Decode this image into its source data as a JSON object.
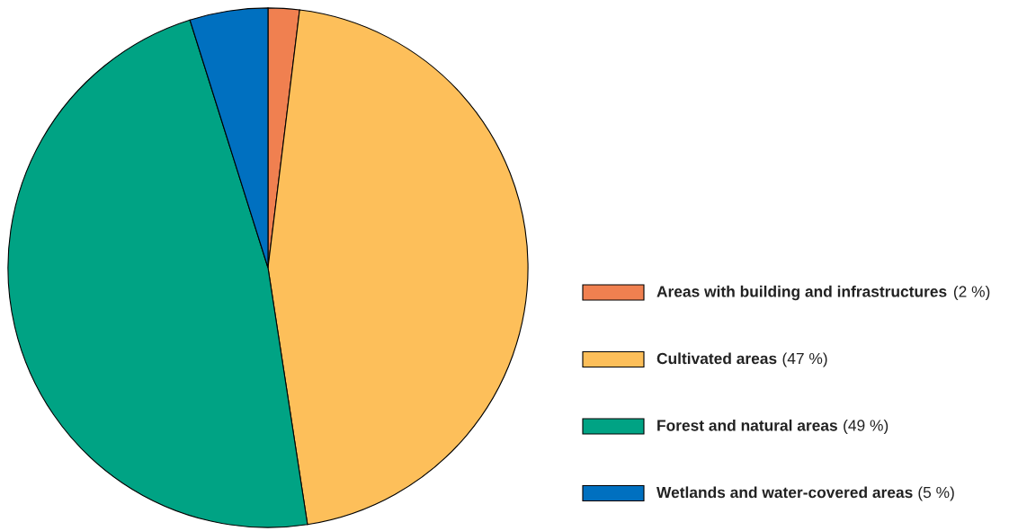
{
  "chart_data": {
    "type": "pie",
    "categories": [
      "Areas with building and infrastructures",
      "Cultivated areas",
      "Forest and natural areas",
      "Wetlands and water-covered areas"
    ],
    "values": [
      2,
      47,
      49,
      5
    ],
    "value_labels": [
      "(2 %)",
      "(47 %)",
      "(49 %)",
      "(5 %)"
    ],
    "colors": [
      "#f08050",
      "#fdbf5a",
      "#00a384",
      "#0070c0"
    ],
    "legend": "right"
  }
}
